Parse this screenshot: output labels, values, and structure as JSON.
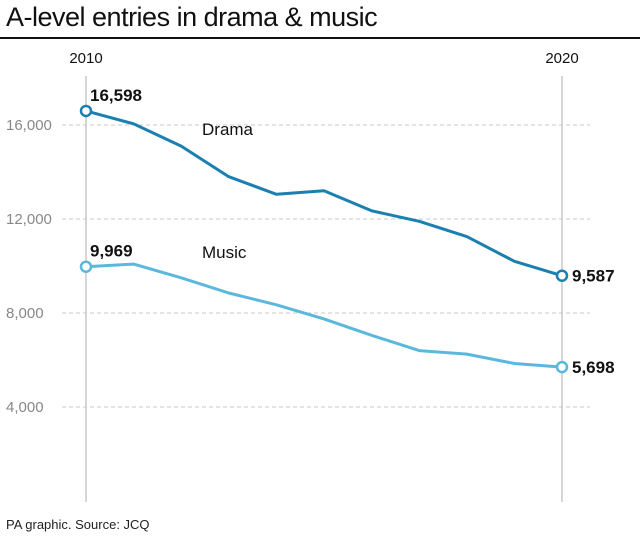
{
  "title": "A-level entries in drama & music",
  "source": "PA graphic. Source: JCQ",
  "colors": {
    "drama": "#1b7fb0",
    "music": "#5bb8dd",
    "grid": "#c8c8c8",
    "axis_text": "#888888",
    "text": "#111111"
  },
  "chart_data": {
    "type": "line",
    "title": "A-level entries in drama & music",
    "xlabel": "",
    "ylabel": "",
    "x": [
      2010,
      2011,
      2012,
      2013,
      2014,
      2015,
      2016,
      2017,
      2018,
      2019,
      2020
    ],
    "x_tick_labels": [
      {
        "value": 2010,
        "label": "2010"
      },
      {
        "value": 2020,
        "label": "2020"
      }
    ],
    "xlim": [
      2010,
      2020
    ],
    "ylim": [
      0,
      17500
    ],
    "y_ticks": [
      {
        "value": 4000,
        "label": "4,000"
      },
      {
        "value": 8000,
        "label": "8,000"
      },
      {
        "value": 12000,
        "label": "12,000"
      },
      {
        "value": 16000,
        "label": "16,000"
      }
    ],
    "grid": true,
    "series": [
      {
        "name": "Drama",
        "color": "#1b7fb0",
        "values": [
          16598,
          16050,
          15100,
          13800,
          13050,
          13200,
          12350,
          11900,
          11250,
          10200,
          9587
        ],
        "start_label": "16,598",
        "end_label": "9,587"
      },
      {
        "name": "Music",
        "color": "#5bb8dd",
        "values": [
          9969,
          10080,
          9500,
          8850,
          8350,
          7750,
          7050,
          6400,
          6250,
          5850,
          5698
        ],
        "start_label": "9,969",
        "end_label": "5,698"
      }
    ]
  }
}
